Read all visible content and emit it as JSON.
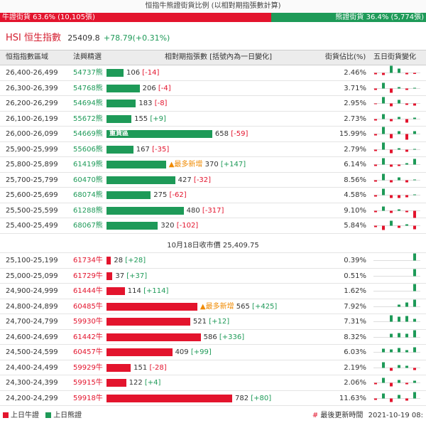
{
  "header": {
    "title": "恒指牛熊證街貨比例 (以相對期指張數計算)",
    "bull_label": "牛證街貨 63.6% (10,105張)",
    "bear_label": "熊證街貨 36.4% (5,774張)",
    "bull_fraction": 0.636
  },
  "index": {
    "name": "HSI 恒生指數",
    "price": "25409.8",
    "change": "+78.79(+0.31%)"
  },
  "columns": {
    "range": "恒指指數區域",
    "code": "法興精選",
    "contracts": "相對期指張數 [括號內為一日變化]",
    "pct": "街貨佔比(%)",
    "trend": "五日街貨變化"
  },
  "bear_rows": [
    {
      "range": "26,400-26,499",
      "code": "54737熊",
      "count": 106,
      "count_text": "106",
      "delta": "[-14]",
      "pct": "2.46%",
      "spark": [
        -0.2,
        -0.3,
        1,
        0.6,
        -0.2,
        -0.15
      ]
    },
    {
      "range": "26,300-26,399",
      "code": "54768熊",
      "count": 206,
      "count_text": "206",
      "delta": "[-4]",
      "pct": "3.71%",
      "spark": [
        -0.2,
        0.8,
        -0.6,
        0.2,
        -0.2,
        0.1
      ]
    },
    {
      "range": "26,200-26,299",
      "code": "54694熊",
      "count": 183,
      "count_text": "183",
      "delta": "[-8]",
      "pct": "2.95%",
      "spark": [
        -0.1,
        0.9,
        -0.4,
        0.5,
        -0.2,
        -0.3
      ]
    },
    {
      "range": "26,100-26,199",
      "code": "55672熊",
      "count": 155,
      "count_text": "155",
      "delta": "[+9]",
      "pct": "2.73%",
      "spark": [
        -0.2,
        0.7,
        -0.3,
        0.3,
        -0.5,
        0.2
      ]
    },
    {
      "range": "26,000-26,099",
      "code": "54669熊",
      "count": 658,
      "count_text": "658",
      "label": "重貨區",
      "delta": "[-59]",
      "pct": "15.99%",
      "spark": [
        -0.2,
        1,
        -0.6,
        0.4,
        -0.8,
        0.4
      ]
    },
    {
      "range": "25,900-25,999",
      "code": "55606熊",
      "count": 167,
      "count_text": "167",
      "delta": "[-35]",
      "pct": "2.79%",
      "spark": [
        -0.2,
        1,
        -0.5,
        0.2,
        -0.3,
        0.1
      ]
    },
    {
      "range": "25,800-25,899",
      "code": "61419熊",
      "count": 370,
      "count_text": "370",
      "tag": "▲最多新增",
      "delta": "[+147]",
      "pct": "6.14%",
      "spark": [
        -0.2,
        0.9,
        -0.3,
        -0.2,
        0.2,
        0.8
      ]
    },
    {
      "range": "25,700-25,799",
      "code": "60470熊",
      "count": 427,
      "count_text": "427",
      "delta": "[-32]",
      "pct": "8.56%",
      "spark": [
        -0.2,
        0.9,
        -0.3,
        0.4,
        -0.3,
        0.1
      ]
    },
    {
      "range": "25,600-25,699",
      "code": "68074熊",
      "count": 275,
      "count_text": "275",
      "delta": "[-62]",
      "pct": "4.58%",
      "spark": [
        -0.2,
        0.9,
        -0.4,
        -0.4,
        -0.3,
        0.1
      ]
    },
    {
      "range": "25,500-25,599",
      "code": "61288熊",
      "count": 480,
      "count_text": "480",
      "delta": "[-317]",
      "pct": "9.10%",
      "spark": [
        -0.2,
        0.6,
        -0.3,
        0.2,
        -0.2,
        -1
      ]
    },
    {
      "range": "25,400-25,499",
      "code": "68067熊",
      "count": 320,
      "count_text": "320",
      "delta": "[-102]",
      "pct": "5.84%",
      "spark": [
        -0.2,
        -0.6,
        0.7,
        -0.3,
        0.2,
        -0.5
      ]
    }
  ],
  "separator": "10月18日收市價 25,409.75",
  "bull_rows": [
    {
      "range": "25,100-25,199",
      "code": "61734牛",
      "count": 28,
      "count_text": "28",
      "delta": "[+28]",
      "pct": "0.39%",
      "spark": [
        0,
        0,
        0,
        0,
        0,
        1
      ]
    },
    {
      "range": "25,000-25,099",
      "code": "61729牛",
      "count": 37,
      "count_text": "37",
      "delta": "[+37]",
      "pct": "0.51%",
      "spark": [
        0,
        0,
        0,
        0,
        0,
        1
      ]
    },
    {
      "range": "24,900-24,999",
      "code": "61444牛",
      "count": 114,
      "count_text": "114",
      "delta": "[+114]",
      "pct": "1.62%",
      "spark": [
        0,
        0,
        0,
        0,
        0,
        1
      ]
    },
    {
      "range": "24,800-24,899",
      "code": "60485牛",
      "count": 565,
      "count_text": "565",
      "tag": "▲最多新增",
      "delta": "[+425]",
      "pct": "7.92%",
      "spark": [
        0,
        0,
        0,
        0.3,
        0.6,
        1
      ]
    },
    {
      "range": "24,700-24,799",
      "code": "59930牛",
      "count": 521,
      "count_text": "521",
      "delta": "[+12]",
      "pct": "7.31%",
      "spark": [
        0,
        0,
        0.9,
        0.7,
        0.8,
        0.4
      ]
    },
    {
      "range": "24,600-24,699",
      "code": "61442牛",
      "count": 586,
      "count_text": "586",
      "delta": "[+336]",
      "pct": "8.32%",
      "spark": [
        0,
        0,
        0.5,
        0.6,
        0.5,
        1
      ]
    },
    {
      "range": "24,500-24,599",
      "code": "60457牛",
      "count": 409,
      "count_text": "409",
      "delta": "[+99]",
      "pct": "6.03%",
      "spark": [
        0,
        0.5,
        0.4,
        0.6,
        0.3,
        0.7
      ]
    },
    {
      "range": "24,400-24,499",
      "code": "59929牛",
      "count": 151,
      "count_text": "151",
      "delta": "[-28]",
      "pct": "2.19%",
      "spark": [
        0,
        0.8,
        -0.4,
        0.4,
        0.3,
        -0.3
      ]
    },
    {
      "range": "24,300-24,399",
      "code": "59915牛",
      "count": 122,
      "count_text": "122",
      "delta": "[+4]",
      "pct": "2.06%",
      "spark": [
        -0.2,
        0.7,
        -0.5,
        0.4,
        -0.2,
        0.3
      ]
    },
    {
      "range": "24,200-24,299",
      "code": "59918牛",
      "count": 782,
      "count_text": "782",
      "delta": "[+80]",
      "pct": "11.63%",
      "spark": [
        -0.2,
        0.7,
        -0.5,
        0.5,
        -0.3,
        0.9
      ]
    }
  ],
  "legend": {
    "bull": "上日牛證",
    "bear": "上日熊證"
  },
  "update": {
    "hash": "#",
    "label": "最後更新時間",
    "time": "2021-10-19 08:"
  },
  "colors": {
    "bull": "#e3142d",
    "bear": "#1e9a58",
    "tag": "#f08a00"
  }
}
